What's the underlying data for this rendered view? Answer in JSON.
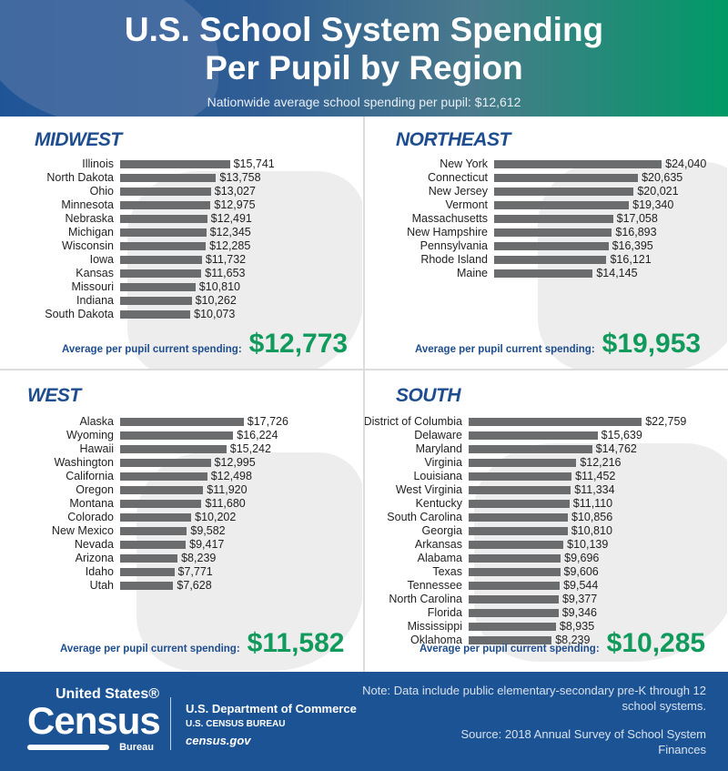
{
  "header": {
    "title_line1": "U.S. School System Spending",
    "title_line2": "Per Pupil by Region",
    "subtitle": "Nationwide average school spending per pupil: $12,612"
  },
  "chart_data": [
    {
      "type": "bar",
      "orientation": "horizontal",
      "title": "MIDWEST",
      "avg_label": "Average per pupil current spending:",
      "avg_value": "$12,773",
      "categories": [
        "Illinois",
        "North Dakota",
        "Ohio",
        "Minnesota",
        "Nebraska",
        "Michigan",
        "Wisconsin",
        "Iowa",
        "Kansas",
        "Missouri",
        "Indiana",
        "South Dakota"
      ],
      "values": [
        15741,
        13758,
        13027,
        12975,
        12491,
        12345,
        12285,
        11732,
        11653,
        10810,
        10262,
        10073
      ]
    },
    {
      "type": "bar",
      "orientation": "horizontal",
      "title": "NORTHEAST",
      "avg_label": "Average per pupil current spending:",
      "avg_value": "$19,953",
      "categories": [
        "New York",
        "Connecticut",
        "New Jersey",
        "Vermont",
        "Massachusetts",
        "New Hampshire",
        "Pennsylvania",
        "Rhode Island",
        "Maine"
      ],
      "values": [
        24040,
        20635,
        20021,
        19340,
        17058,
        16893,
        16395,
        16121,
        14145
      ]
    },
    {
      "type": "bar",
      "orientation": "horizontal",
      "title": "WEST",
      "avg_label": "Average per pupil current spending:",
      "avg_value": "$11,582",
      "categories": [
        "Alaska",
        "Wyoming",
        "Hawaii",
        "Washington",
        "California",
        "Oregon",
        "Montana",
        "Colorado",
        "New Mexico",
        "Nevada",
        "Arizona",
        "Idaho",
        "Utah"
      ],
      "values": [
        17726,
        16224,
        15242,
        12995,
        12498,
        11920,
        11680,
        10202,
        9582,
        9417,
        8239,
        7771,
        7628
      ]
    },
    {
      "type": "bar",
      "orientation": "horizontal",
      "title": "SOUTH",
      "avg_label": "Average per pupil current spending:",
      "avg_value": "$10,285",
      "categories": [
        "District of Columbia",
        "Delaware",
        "Maryland",
        "Virginia",
        "Louisiana",
        "West Virginia",
        "Kentucky",
        "South Carolina",
        "Georgia",
        "Arkansas",
        "Alabama",
        "Texas",
        "Tennessee",
        "North Carolina",
        "Florida",
        "Mississippi",
        "Oklahoma"
      ],
      "values": [
        22759,
        15639,
        14762,
        12216,
        11452,
        11334,
        11110,
        10856,
        10810,
        10139,
        9696,
        9606,
        9544,
        9377,
        9346,
        8935,
        8239
      ]
    }
  ],
  "footer": {
    "logo_top": "United States®",
    "logo_main": "Census",
    "logo_bottom": "Bureau",
    "dept": "U.S. Department of Commerce",
    "bureau": "U.S. CENSUS BUREAU",
    "site": "census.gov",
    "note": "Note: Data include public elementary-secondary pre-K through 12 school systems.",
    "source": "Source: 2018 Annual Survey of School System Finances"
  },
  "colors": {
    "bar": "#6b6c6e",
    "accent_blue": "#1d4d8f",
    "accent_green": "#109a5c",
    "footer": "#1c5394"
  }
}
